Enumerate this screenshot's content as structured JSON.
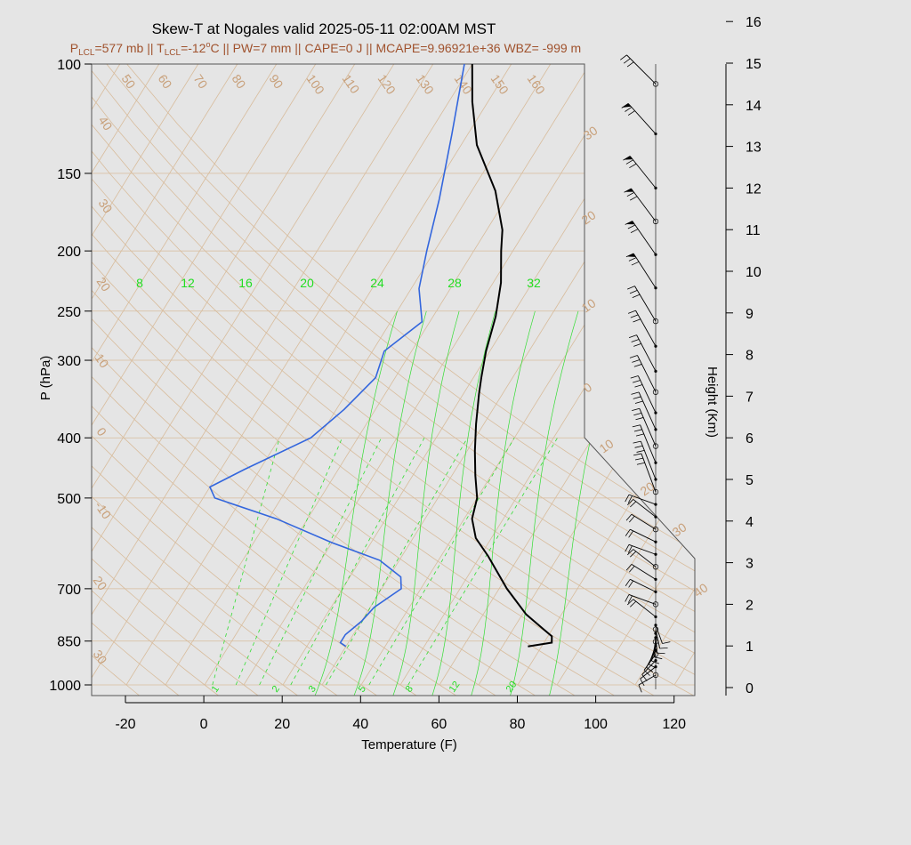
{
  "title": "Skew-T at Nogales valid 2025-05-11 02:00AM MST",
  "subtitle": {
    "p_lcl_prefix": "P",
    "p_lcl_sub": "LCL",
    "p_lcl_rest": "=577 mb || T",
    "t_lcl_sub": "LCL",
    "t_lcl_rest": "=-12",
    "deg_sup": "o",
    "tail": "C || PW=7 mm || CAPE=0 J || MCAPE=9.96921e+36 WBZ= -999 m"
  },
  "colors": {
    "background": "#e5e5e5",
    "temperature": "#000000",
    "dewpoint": "#3366dd",
    "isotherm": "#d8bc9c",
    "mixing_ratio": "#33dd33",
    "subtitle": "#a0522d"
  },
  "chart_data": {
    "type": "line",
    "xlabel": "Temperature (F)",
    "ylabel": "P (hPa)",
    "y2label": "Height (Km)",
    "x_ticks": [
      "-20",
      "0",
      "20",
      "40",
      "60",
      "80",
      "100",
      "120"
    ],
    "p_ticks": [
      "100",
      "150",
      "200",
      "250",
      "300",
      "400",
      "500",
      "700",
      "850",
      "1000"
    ],
    "height_ticks": [
      "0",
      "1",
      "2",
      "3",
      "4",
      "5",
      "6",
      "7",
      "8",
      "9",
      "10",
      "11",
      "12",
      "13",
      "14",
      "15",
      "16"
    ],
    "isotherm_labels_top": [
      "50",
      "60",
      "70",
      "80",
      "90",
      "100",
      "110",
      "120",
      "130",
      "140",
      "150",
      "160"
    ],
    "isotherm_labels_left": [
      "40",
      "30",
      "20",
      "10",
      "0",
      "-10",
      "20",
      "30"
    ],
    "isotherm_labels_right": [
      "30",
      "20",
      "10",
      "0",
      "10",
      "20",
      "30",
      "40"
    ],
    "mixing_ratio_top_labels": [
      "8",
      "12",
      "16",
      "20",
      "24",
      "28",
      "32"
    ],
    "mixing_ratio_bottom_labels": [
      "1",
      "2",
      "3",
      "5",
      "8",
      "12",
      "20"
    ],
    "series": [
      {
        "key": "temperature",
        "points": [
          [
            76.5,
            867
          ],
          [
            82,
            855
          ],
          [
            81,
            835
          ],
          [
            78,
            815
          ],
          [
            71,
            770
          ],
          [
            62,
            700
          ],
          [
            52,
            620
          ],
          [
            46,
            580
          ],
          [
            42,
            540
          ],
          [
            40,
            500
          ],
          [
            36,
            460
          ],
          [
            32,
            420
          ],
          [
            28,
            380
          ],
          [
            24,
            340
          ],
          [
            22,
            320
          ],
          [
            19,
            290
          ],
          [
            16,
            255
          ],
          [
            12,
            225
          ],
          [
            7,
            200
          ],
          [
            4,
            185
          ],
          [
            -4,
            160
          ],
          [
            -16,
            135
          ],
          [
            -24,
            115
          ],
          [
            -30,
            100
          ]
        ]
      },
      {
        "key": "dewpoint",
        "points": [
          [
            30,
            867
          ],
          [
            28,
            855
          ],
          [
            28,
            830
          ],
          [
            30,
            790
          ],
          [
            31,
            750
          ],
          [
            35,
            700
          ],
          [
            33,
            670
          ],
          [
            25,
            630
          ],
          [
            10,
            590
          ],
          [
            -8,
            540
          ],
          [
            -27,
            500
          ],
          [
            -30,
            480
          ],
          [
            -24,
            450
          ],
          [
            -12,
            400
          ],
          [
            -8,
            360
          ],
          [
            -5,
            320
          ],
          [
            -7,
            290
          ],
          [
            -2,
            260
          ],
          [
            -8,
            230
          ],
          [
            -12,
            200
          ],
          [
            -17,
            165
          ],
          [
            -24,
            130
          ],
          [
            -32,
            100
          ]
        ]
      }
    ],
    "wind_barb_heights_km": [
      0.3,
      0.5,
      0.65,
      0.8,
      0.9,
      1.0,
      1.1,
      1.2,
      1.3,
      1.4,
      1.5,
      1.7,
      2.0,
      2.3,
      2.6,
      2.9,
      3.2,
      3.5,
      3.8,
      4.1,
      4.4,
      4.7,
      5.0,
      5.4,
      5.8,
      6.2,
      6.6,
      7.1,
      7.6,
      8.2,
      8.8,
      9.6,
      10.4,
      11.2,
      12.0,
      13.3,
      14.5
    ]
  }
}
